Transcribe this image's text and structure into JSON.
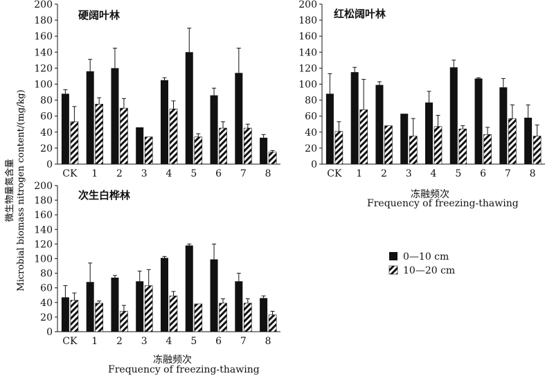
{
  "chart_data": {
    "type": "bar",
    "ylabel_cn": "微生物量氮含量",
    "ylabel_en": "Microbial biomass nitrogen content/(mg/kg)",
    "xlabel_cn": "冻融频次",
    "xlabel_en": "Frequency of freezing-thawing",
    "categories": [
      "CK",
      "1",
      "2",
      "3",
      "4",
      "5",
      "6",
      "7",
      "8"
    ],
    "ylim": [
      0,
      200
    ],
    "yticks": [
      0,
      20,
      40,
      60,
      80,
      100,
      120,
      140,
      160,
      180,
      200
    ],
    "legend": {
      "placement": "right",
      "entries": [
        "0—10 cm",
        "10—20 cm"
      ]
    },
    "panels": [
      {
        "title": "硬阔叶林",
        "series": [
          {
            "values": [
              88,
              116,
              120,
              46,
              105,
              140,
              86,
              114,
              33
            ],
            "errors": [
              5,
              15,
              25,
              0,
              3,
              30,
              9,
              31,
              4
            ]
          },
          {
            "values": [
              53,
              75,
              70,
              34,
              69,
              34,
              45,
              45,
              15
            ],
            "errors": [
              19,
              8,
              12,
              0,
              10,
              4,
              8,
              5,
              2
            ]
          }
        ]
      },
      {
        "title": "红松阔叶林",
        "series": [
          {
            "values": [
              88,
              115,
              99,
              63,
              77,
              121,
              107,
              96,
              58
            ],
            "errors": [
              25,
              6,
              4,
              0,
              14,
              9,
              1,
              11,
              16
            ]
          },
          {
            "values": [
              41,
              68,
              48,
              35,
              47,
              44,
              37,
              57,
              35
            ],
            "errors": [
              12,
              38,
              0,
              22,
              14,
              4,
              9,
              17,
              14
            ]
          }
        ]
      },
      {
        "title": "次生白桦林",
        "series": [
          {
            "values": [
              47,
              68,
              74,
              69,
              101,
              118,
              99,
              69,
              46
            ],
            "errors": [
              16,
              26,
              3,
              14,
              2,
              2,
              21,
              11,
              3
            ]
          },
          {
            "values": [
              43,
              39,
              28,
              63,
              49,
              38,
              39,
              39,
              23
            ],
            "errors": [
              10,
              3,
              8,
              22,
              6,
              0,
              6,
              6,
              5
            ]
          }
        ]
      }
    ]
  }
}
